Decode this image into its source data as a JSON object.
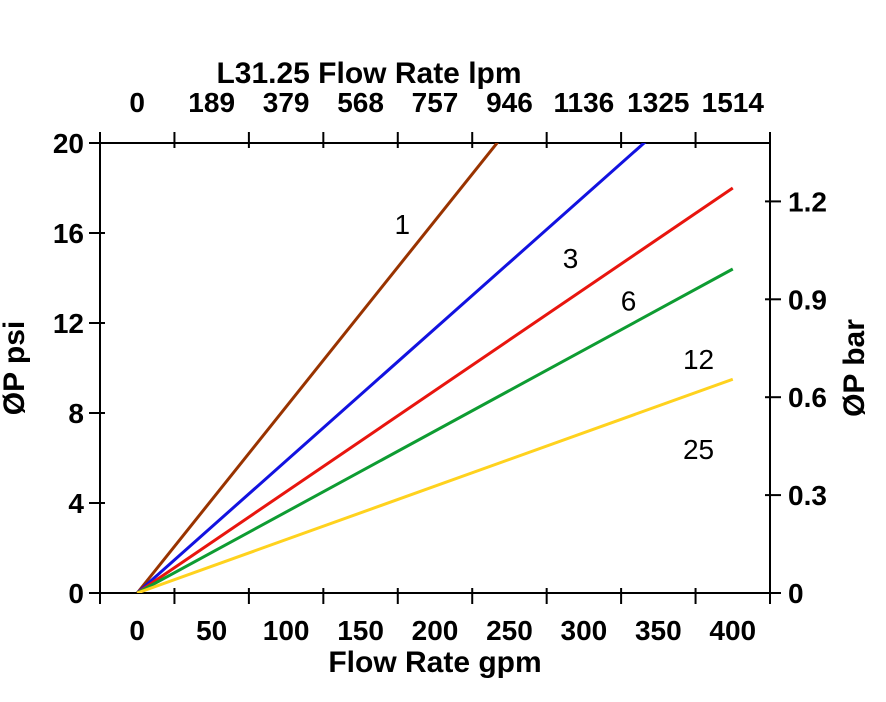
{
  "chart_data": {
    "type": "line",
    "title": "L31.25 Flow Rate lpm",
    "x_axis_bottom": {
      "label": "Flow Rate gpm",
      "tick_labels": [
        "0",
        "50",
        "100",
        "150",
        "200",
        "250",
        "300",
        "350",
        "400"
      ],
      "min": 0,
      "max": 400,
      "unit": "gpm"
    },
    "x_axis_top": {
      "label": "L31.25 Flow Rate lpm",
      "tick_labels": [
        "0",
        "189",
        "379",
        "568",
        "757",
        "946",
        "1136",
        "1325",
        "1514"
      ],
      "unit": "lpm"
    },
    "y_axis_left": {
      "label": "ØP psi",
      "tick_labels": [
        "0",
        "4",
        "8",
        "12",
        "16",
        "20"
      ],
      "tick_values_psi": [
        0,
        4,
        8,
        12,
        16,
        20
      ],
      "min": 0,
      "max": 20,
      "unit": "psi"
    },
    "y_axis_right": {
      "label": "ØP bar",
      "tick_labels": [
        "0",
        "0.3",
        "0.6",
        "0.9",
        "1.2"
      ],
      "tick_values_bar": [
        0,
        0.3,
        0.6,
        0.9,
        1.2
      ],
      "psi_per_bar": 14.5038,
      "unit": "bar"
    },
    "grid": false,
    "legend_position": "none-inline-labels",
    "axis_color": "#000000",
    "series": [
      {
        "name": "1",
        "color": "#993300",
        "x_gpm": [
          0,
          400
        ],
        "y_psi": [
          0,
          33.1
        ]
      },
      {
        "name": "3",
        "color": "#1212E0",
        "x_gpm": [
          0,
          400
        ],
        "y_psi": [
          0,
          23.5
        ]
      },
      {
        "name": "6",
        "color": "#E8150E",
        "x_gpm": [
          0,
          400
        ],
        "y_psi": [
          0,
          18.0
        ]
      },
      {
        "name": "12",
        "color": "#0E9C32",
        "x_gpm": [
          0,
          400
        ],
        "y_psi": [
          0,
          14.4
        ]
      },
      {
        "name": "25",
        "color": "#FFD21E",
        "x_gpm": [
          0,
          400
        ],
        "y_psi": [
          0,
          9.5
        ]
      }
    ],
    "annotations": [
      {
        "text": "1",
        "gpm": 178,
        "psi": 16.4
      },
      {
        "text": "3",
        "gpm": 291,
        "psi": 14.9
      },
      {
        "text": "6",
        "gpm": 330,
        "psi": 13.0
      },
      {
        "text": "12",
        "gpm": 377,
        "psi": 10.4
      },
      {
        "text": "25",
        "gpm": 377,
        "psi": 6.4
      }
    ]
  }
}
